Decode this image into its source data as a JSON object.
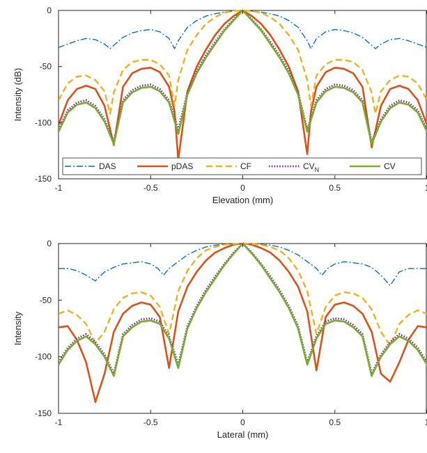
{
  "chart_data": [
    {
      "type": "line",
      "xlabel": "Elevation (mm)",
      "ylabel": "Intensity (dB)",
      "xlim": [
        -1,
        1
      ],
      "ylim": [
        -150,
        0
      ],
      "xticks": [
        -1,
        -0.5,
        0,
        0.5,
        1
      ],
      "xtick_labels": [
        "-1",
        "-0.5",
        "0",
        "0.5",
        "1"
      ],
      "yticks": [
        0,
        -50,
        -100,
        -150
      ],
      "ytick_labels": [
        "0",
        "-50",
        "-100",
        "-150"
      ],
      "grid": false,
      "legend": {
        "placement": "bottom",
        "orientation": "horizontal",
        "entries": [
          {
            "main": "DAS",
            "sub": ""
          },
          {
            "main": "pDAS",
            "sub": ""
          },
          {
            "main": "CF",
            "sub": ""
          },
          {
            "main": "CV",
            "sub": "N"
          },
          {
            "main": "CV",
            "sub": ""
          }
        ]
      },
      "series": [
        {
          "name": "DAS",
          "color": "#0072bd",
          "dash": "dashdot",
          "x": [
            -1,
            -0.95,
            -0.9,
            -0.85,
            -0.8,
            -0.75,
            -0.72,
            -0.7,
            -0.65,
            -0.6,
            -0.55,
            -0.5,
            -0.45,
            -0.4,
            -0.37,
            -0.35,
            -0.3,
            -0.25,
            -0.2,
            -0.15,
            -0.1,
            -0.05,
            0,
            0.05,
            0.1,
            0.15,
            0.2,
            0.25,
            0.3,
            0.35,
            0.37,
            0.4,
            0.45,
            0.5,
            0.55,
            0.6,
            0.65,
            0.7,
            0.72,
            0.75,
            0.8,
            0.85,
            0.9,
            0.95,
            1
          ],
          "y": [
            -33,
            -30,
            -27,
            -25,
            -26,
            -30,
            -34,
            -31,
            -24,
            -20,
            -18,
            -17,
            -19,
            -25,
            -34,
            -27,
            -15,
            -9,
            -5,
            -3,
            -1.5,
            -0.5,
            0,
            -0.5,
            -1.5,
            -3,
            -5,
            -9,
            -15,
            -27,
            -34,
            -25,
            -19,
            -17,
            -18,
            -20,
            -24,
            -31,
            -34,
            -30,
            -26,
            -25,
            -27,
            -30,
            -33
          ]
        },
        {
          "name": "pDAS",
          "color": "#d95319",
          "dash": "solid",
          "x": [
            -1,
            -0.95,
            -0.9,
            -0.85,
            -0.8,
            -0.75,
            -0.7,
            -0.65,
            -0.6,
            -0.55,
            -0.5,
            -0.45,
            -0.4,
            -0.37,
            -0.35,
            -0.3,
            -0.25,
            -0.2,
            -0.15,
            -0.1,
            -0.05,
            0,
            0.05,
            0.1,
            0.15,
            0.2,
            0.25,
            0.3,
            0.35,
            0.37,
            0.4,
            0.45,
            0.5,
            0.55,
            0.6,
            0.65,
            0.7,
            0.75,
            0.8,
            0.85,
            0.9,
            0.95,
            1
          ],
          "y": [
            -102,
            -80,
            -70,
            -67,
            -70,
            -85,
            -120,
            -68,
            -56,
            -52,
            -51,
            -55,
            -68,
            -90,
            -133,
            -72,
            -50,
            -35,
            -22,
            -12,
            -5,
            0,
            -5,
            -12,
            -22,
            -35,
            -50,
            -72,
            -128,
            -90,
            -68,
            -55,
            -51,
            -52,
            -56,
            -68,
            -122,
            -85,
            -70,
            -67,
            -70,
            -80,
            -102
          ]
        },
        {
          "name": "CF",
          "color": "#edb120",
          "dash": "dashed",
          "x": [
            -1,
            -0.95,
            -0.9,
            -0.85,
            -0.8,
            -0.75,
            -0.72,
            -0.7,
            -0.65,
            -0.6,
            -0.55,
            -0.5,
            -0.45,
            -0.4,
            -0.37,
            -0.35,
            -0.3,
            -0.25,
            -0.2,
            -0.15,
            -0.1,
            -0.05,
            0,
            0.05,
            0.1,
            0.15,
            0.2,
            0.25,
            0.3,
            0.35,
            0.37,
            0.4,
            0.45,
            0.5,
            0.55,
            0.6,
            0.65,
            0.7,
            0.72,
            0.75,
            0.8,
            0.85,
            0.9,
            0.95,
            1
          ],
          "y": [
            -80,
            -65,
            -59,
            -58,
            -62,
            -72,
            -92,
            -73,
            -53,
            -46,
            -44,
            -44,
            -48,
            -58,
            -85,
            -62,
            -35,
            -22,
            -12,
            -6,
            -2,
            -0.5,
            0,
            -0.5,
            -2,
            -6,
            -12,
            -22,
            -35,
            -62,
            -85,
            -58,
            -48,
            -44,
            -44,
            -46,
            -53,
            -73,
            -92,
            -72,
            -62,
            -58,
            -59,
            -65,
            -80
          ]
        },
        {
          "name": "CV_N",
          "color": "#7e2f8e",
          "dash": "dotted",
          "x": [
            -1,
            -0.95,
            -0.9,
            -0.85,
            -0.8,
            -0.75,
            -0.7,
            -0.65,
            -0.6,
            -0.55,
            -0.5,
            -0.45,
            -0.4,
            -0.35,
            -0.3,
            -0.25,
            -0.2,
            -0.15,
            -0.1,
            -0.05,
            0,
            0.05,
            0.1,
            0.15,
            0.2,
            0.25,
            0.3,
            0.35,
            0.4,
            0.45,
            0.5,
            0.55,
            0.6,
            0.65,
            0.7,
            0.75,
            0.8,
            0.85,
            0.9,
            0.95,
            1
          ],
          "y": [
            -106,
            -89,
            -82,
            -80,
            -85,
            -97,
            -117,
            -80,
            -71,
            -67,
            -66,
            -70,
            -80,
            -106,
            -73,
            -54,
            -40,
            -28,
            -17,
            -8,
            0,
            -8,
            -17,
            -28,
            -40,
            -54,
            -73,
            -106,
            -80,
            -70,
            -66,
            -67,
            -71,
            -80,
            -117,
            -97,
            -85,
            -80,
            -82,
            -89,
            -106
          ]
        },
        {
          "name": "CV",
          "color": "#77ac30",
          "dash": "solid",
          "x": [
            -1,
            -0.95,
            -0.9,
            -0.85,
            -0.8,
            -0.75,
            -0.7,
            -0.65,
            -0.6,
            -0.55,
            -0.5,
            -0.45,
            -0.4,
            -0.35,
            -0.3,
            -0.25,
            -0.2,
            -0.15,
            -0.1,
            -0.05,
            0,
            0.05,
            0.1,
            0.15,
            0.2,
            0.25,
            0.3,
            0.35,
            0.4,
            0.45,
            0.5,
            0.55,
            0.6,
            0.65,
            0.7,
            0.75,
            0.8,
            0.85,
            0.9,
            0.95,
            1
          ],
          "y": [
            -108,
            -91,
            -84,
            -82,
            -87,
            -99,
            -119,
            -82,
            -73,
            -69,
            -68,
            -72,
            -82,
            -110,
            -75,
            -56,
            -42,
            -30,
            -18,
            -9,
            0,
            -9,
            -18,
            -30,
            -42,
            -56,
            -75,
            -108,
            -82,
            -72,
            -68,
            -69,
            -73,
            -82,
            -119,
            -99,
            -87,
            -82,
            -84,
            -91,
            -108
          ]
        }
      ]
    },
    {
      "type": "line",
      "xlabel": "Lateral (mm)",
      "ylabel": "Intensity",
      "xlim": [
        -1,
        1
      ],
      "ylim": [
        -150,
        0
      ],
      "xticks": [
        -1,
        -0.5,
        0,
        0.5,
        1
      ],
      "xtick_labels": [
        "-1",
        "-0.5",
        "0",
        "0.5",
        "1"
      ],
      "yticks": [
        0,
        -50,
        -100,
        -150
      ],
      "ytick_labels": [
        "0",
        "-50",
        "-100",
        "-150"
      ],
      "grid": false,
      "series": [
        {
          "name": "DAS",
          "color": "#0072bd",
          "dash": "dashdot",
          "x": [
            -1,
            -0.95,
            -0.9,
            -0.85,
            -0.8,
            -0.75,
            -0.7,
            -0.65,
            -0.6,
            -0.55,
            -0.5,
            -0.46,
            -0.43,
            -0.4,
            -0.35,
            -0.3,
            -0.25,
            -0.2,
            -0.15,
            -0.1,
            -0.05,
            0,
            0.05,
            0.1,
            0.15,
            0.2,
            0.25,
            0.3,
            0.35,
            0.4,
            0.43,
            0.46,
            0.5,
            0.55,
            0.6,
            0.65,
            0.7,
            0.75,
            0.8,
            0.85,
            0.9,
            0.95,
            1
          ],
          "y": [
            -22,
            -22,
            -24,
            -28,
            -33,
            -25,
            -21,
            -18,
            -17,
            -16,
            -18,
            -22,
            -28,
            -22,
            -16,
            -10,
            -6,
            -3,
            -1.5,
            -0.7,
            -0.2,
            0,
            -0.2,
            -0.7,
            -1.5,
            -3,
            -6,
            -10,
            -16,
            -22,
            -28,
            -22,
            -18,
            -16,
            -17,
            -18,
            -21,
            -28,
            -37,
            -25,
            -22,
            -22,
            -22
          ]
        },
        {
          "name": "pDAS",
          "color": "#d95319",
          "dash": "solid",
          "x": [
            -1,
            -0.95,
            -0.9,
            -0.85,
            -0.8,
            -0.75,
            -0.7,
            -0.65,
            -0.6,
            -0.55,
            -0.5,
            -0.45,
            -0.4,
            -0.35,
            -0.3,
            -0.25,
            -0.2,
            -0.15,
            -0.1,
            -0.05,
            0,
            0.05,
            0.1,
            0.15,
            0.2,
            0.25,
            0.3,
            0.35,
            0.4,
            0.45,
            0.5,
            0.55,
            0.6,
            0.65,
            0.7,
            0.75,
            0.8,
            0.85,
            0.9,
            0.95,
            1
          ],
          "y": [
            -74,
            -73,
            -85,
            -105,
            -140,
            -115,
            -78,
            -62,
            -55,
            -52,
            -54,
            -65,
            -110,
            -60,
            -38,
            -25,
            -15,
            -8,
            -4,
            -1,
            0,
            -1,
            -4,
            -8,
            -15,
            -25,
            -38,
            -60,
            -112,
            -65,
            -54,
            -52,
            -55,
            -62,
            -78,
            -115,
            -122,
            -105,
            -85,
            -73,
            -74
          ]
        },
        {
          "name": "CF",
          "color": "#edb120",
          "dash": "dashed",
          "x": [
            -1,
            -0.95,
            -0.9,
            -0.85,
            -0.8,
            -0.75,
            -0.7,
            -0.65,
            -0.6,
            -0.55,
            -0.5,
            -0.45,
            -0.4,
            -0.35,
            -0.3,
            -0.25,
            -0.2,
            -0.15,
            -0.1,
            -0.05,
            0,
            0.05,
            0.1,
            0.15,
            0.2,
            0.25,
            0.3,
            0.35,
            0.4,
            0.45,
            0.5,
            0.55,
            0.6,
            0.65,
            0.7,
            0.75,
            0.8,
            0.85,
            0.9,
            0.95,
            1
          ],
          "y": [
            -62,
            -59,
            -63,
            -71,
            -88,
            -78,
            -58,
            -48,
            -44,
            -43,
            -46,
            -56,
            -80,
            -42,
            -24,
            -13,
            -6,
            -3,
            -1,
            -0.3,
            0,
            -0.3,
            -1,
            -3,
            -6,
            -13,
            -24,
            -42,
            -80,
            -56,
            -46,
            -43,
            -44,
            -48,
            -58,
            -78,
            -90,
            -71,
            -63,
            -59,
            -62
          ]
        },
        {
          "name": "CV_N",
          "color": "#7e2f8e",
          "dash": "dotted",
          "x": [
            -1,
            -0.95,
            -0.9,
            -0.85,
            -0.8,
            -0.75,
            -0.7,
            -0.65,
            -0.6,
            -0.55,
            -0.5,
            -0.45,
            -0.4,
            -0.35,
            -0.3,
            -0.25,
            -0.2,
            -0.15,
            -0.1,
            -0.05,
            0,
            0.05,
            0.1,
            0.15,
            0.2,
            0.25,
            0.3,
            0.35,
            0.4,
            0.45,
            0.5,
            0.55,
            0.6,
            0.65,
            0.7,
            0.75,
            0.8,
            0.85,
            0.9,
            0.95,
            1
          ],
          "y": [
            -105,
            -92,
            -84,
            -80,
            -87,
            -98,
            -115,
            -80,
            -72,
            -67,
            -66,
            -69,
            -82,
            -107,
            -73,
            -55,
            -41,
            -29,
            -18,
            -8,
            0,
            -8,
            -18,
            -29,
            -41,
            -55,
            -73,
            -105,
            -82,
            -69,
            -66,
            -67,
            -72,
            -80,
            -115,
            -98,
            -87,
            -80,
            -84,
            -92,
            -105
          ]
        },
        {
          "name": "CV",
          "color": "#77ac30",
          "dash": "solid",
          "x": [
            -1,
            -0.95,
            -0.9,
            -0.85,
            -0.8,
            -0.75,
            -0.7,
            -0.65,
            -0.6,
            -0.55,
            -0.5,
            -0.45,
            -0.4,
            -0.35,
            -0.3,
            -0.25,
            -0.2,
            -0.15,
            -0.1,
            -0.05,
            0,
            0.05,
            0.1,
            0.15,
            0.2,
            0.25,
            0.3,
            0.35,
            0.4,
            0.45,
            0.5,
            0.55,
            0.6,
            0.65,
            0.7,
            0.75,
            0.8,
            0.85,
            0.9,
            0.95,
            1
          ],
          "y": [
            -107,
            -94,
            -86,
            -82,
            -89,
            -100,
            -117,
            -82,
            -74,
            -69,
            -68,
            -71,
            -84,
            -110,
            -75,
            -57,
            -43,
            -31,
            -19,
            -9,
            0,
            -9,
            -19,
            -31,
            -43,
            -57,
            -75,
            -107,
            -84,
            -71,
            -68,
            -69,
            -74,
            -82,
            -117,
            -100,
            -89,
            -82,
            -86,
            -94,
            -107
          ]
        }
      ]
    }
  ]
}
